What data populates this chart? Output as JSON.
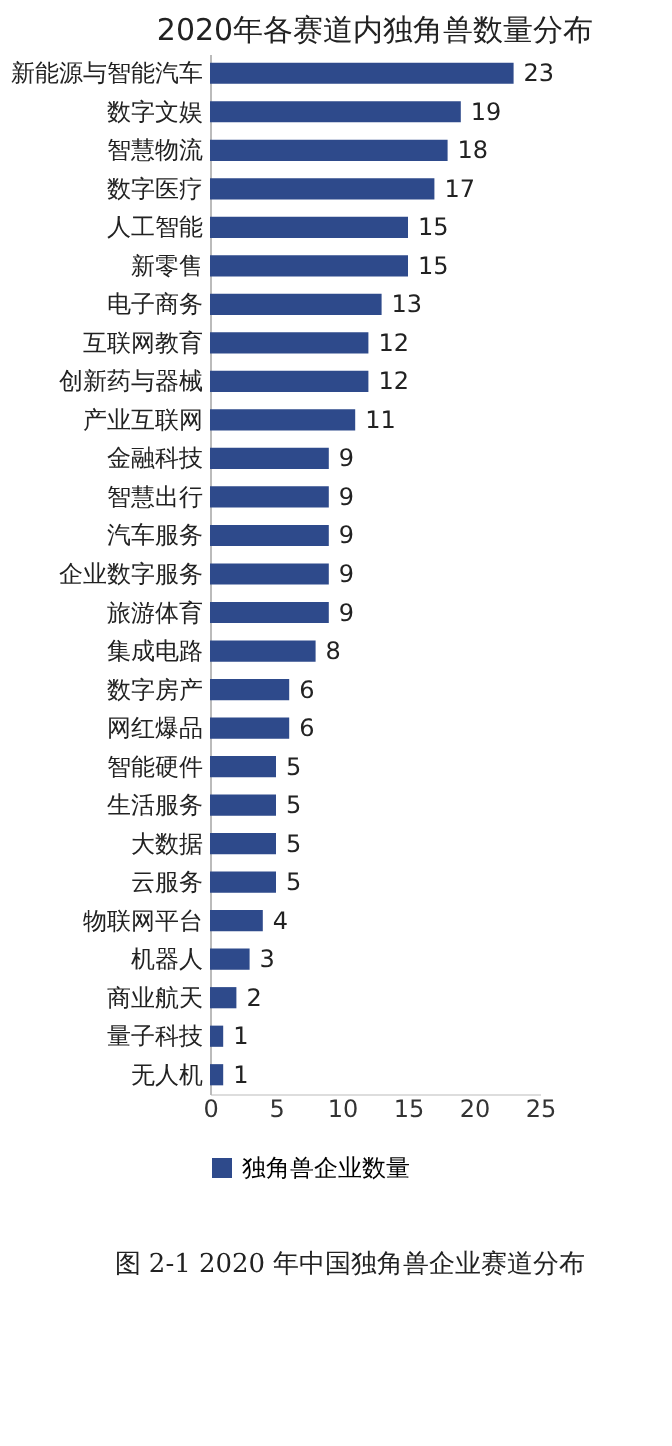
{
  "chart_data": {
    "type": "bar",
    "orientation": "horizontal",
    "title": "2020年各赛道内独角兽数量分布",
    "categories": [
      "新能源与智能汽车",
      "数字文娱",
      "智慧物流",
      "数字医疗",
      "人工智能",
      "新零售",
      "电子商务",
      "互联网教育",
      "创新药与器械",
      "产业互联网",
      "金融科技",
      "智慧出行",
      "汽车服务",
      "企业数字服务",
      "旅游体育",
      "集成电路",
      "数字房产",
      "网红爆品",
      "智能硬件",
      "生活服务",
      "大数据",
      "云服务",
      "物联网平台",
      "机器人",
      "商业航天",
      "量子科技",
      "无人机"
    ],
    "series": [
      {
        "name": "独角兽企业数量",
        "color": "#2e4a8b",
        "values": [
          23,
          19,
          18,
          17,
          15,
          15,
          13,
          12,
          12,
          11,
          9,
          9,
          9,
          9,
          9,
          8,
          6,
          6,
          5,
          5,
          5,
          5,
          4,
          3,
          2,
          1,
          1
        ]
      }
    ],
    "xlim": [
      0,
      25
    ],
    "xticks": [
      0,
      5,
      10,
      15,
      20,
      25
    ],
    "grid": false,
    "legend": "bottom",
    "data_labels": true,
    "annotations": [
      "图 2-1 2020 年中国独角兽企业赛道分布"
    ]
  }
}
